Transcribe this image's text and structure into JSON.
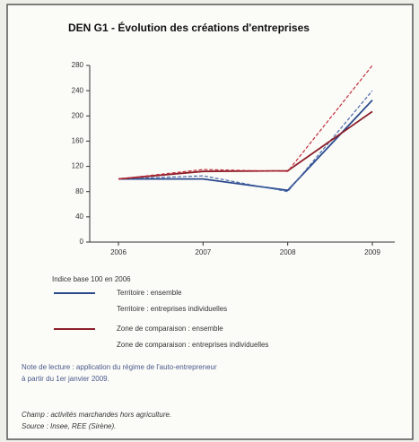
{
  "chart_data": {
    "type": "line",
    "title": "DEN G1 - Évolution des créations d'entreprises",
    "categories": [
      "2006",
      "2007",
      "2008",
      "2009"
    ],
    "series": [
      {
        "name": "Territoire : ensemble",
        "color": "#2a4a8c",
        "dash": false,
        "values": [
          100,
          100,
          82,
          225
        ]
      },
      {
        "name": "Territoire : entreprises individuelles",
        "color": "#4a6aa8",
        "dash": true,
        "values": [
          100,
          105,
          80,
          240
        ]
      },
      {
        "name": "Zone de comparaison : ensemble",
        "color": "#8c1f2a",
        "dash": false,
        "values": [
          100,
          112,
          113,
          207
        ]
      },
      {
        "name": "Zone de comparaison : entreprises individuelles",
        "color": "#c0303a",
        "dash": true,
        "values": [
          100,
          115,
          112,
          280
        ]
      }
    ],
    "ylim": [
      0,
      280
    ],
    "yticks": [
      0,
      40,
      80,
      120,
      160,
      200,
      240,
      280
    ],
    "legend_title": "Indice base 100 en 2006",
    "note": [
      "Note de lecture : application du régime de l'auto-entrepreneur",
      "à partir du 1er janvier 2009."
    ],
    "champ": "Champ : activités marchandes hors agriculture.",
    "source": "Source : Insee, REE (Sirène)."
  }
}
